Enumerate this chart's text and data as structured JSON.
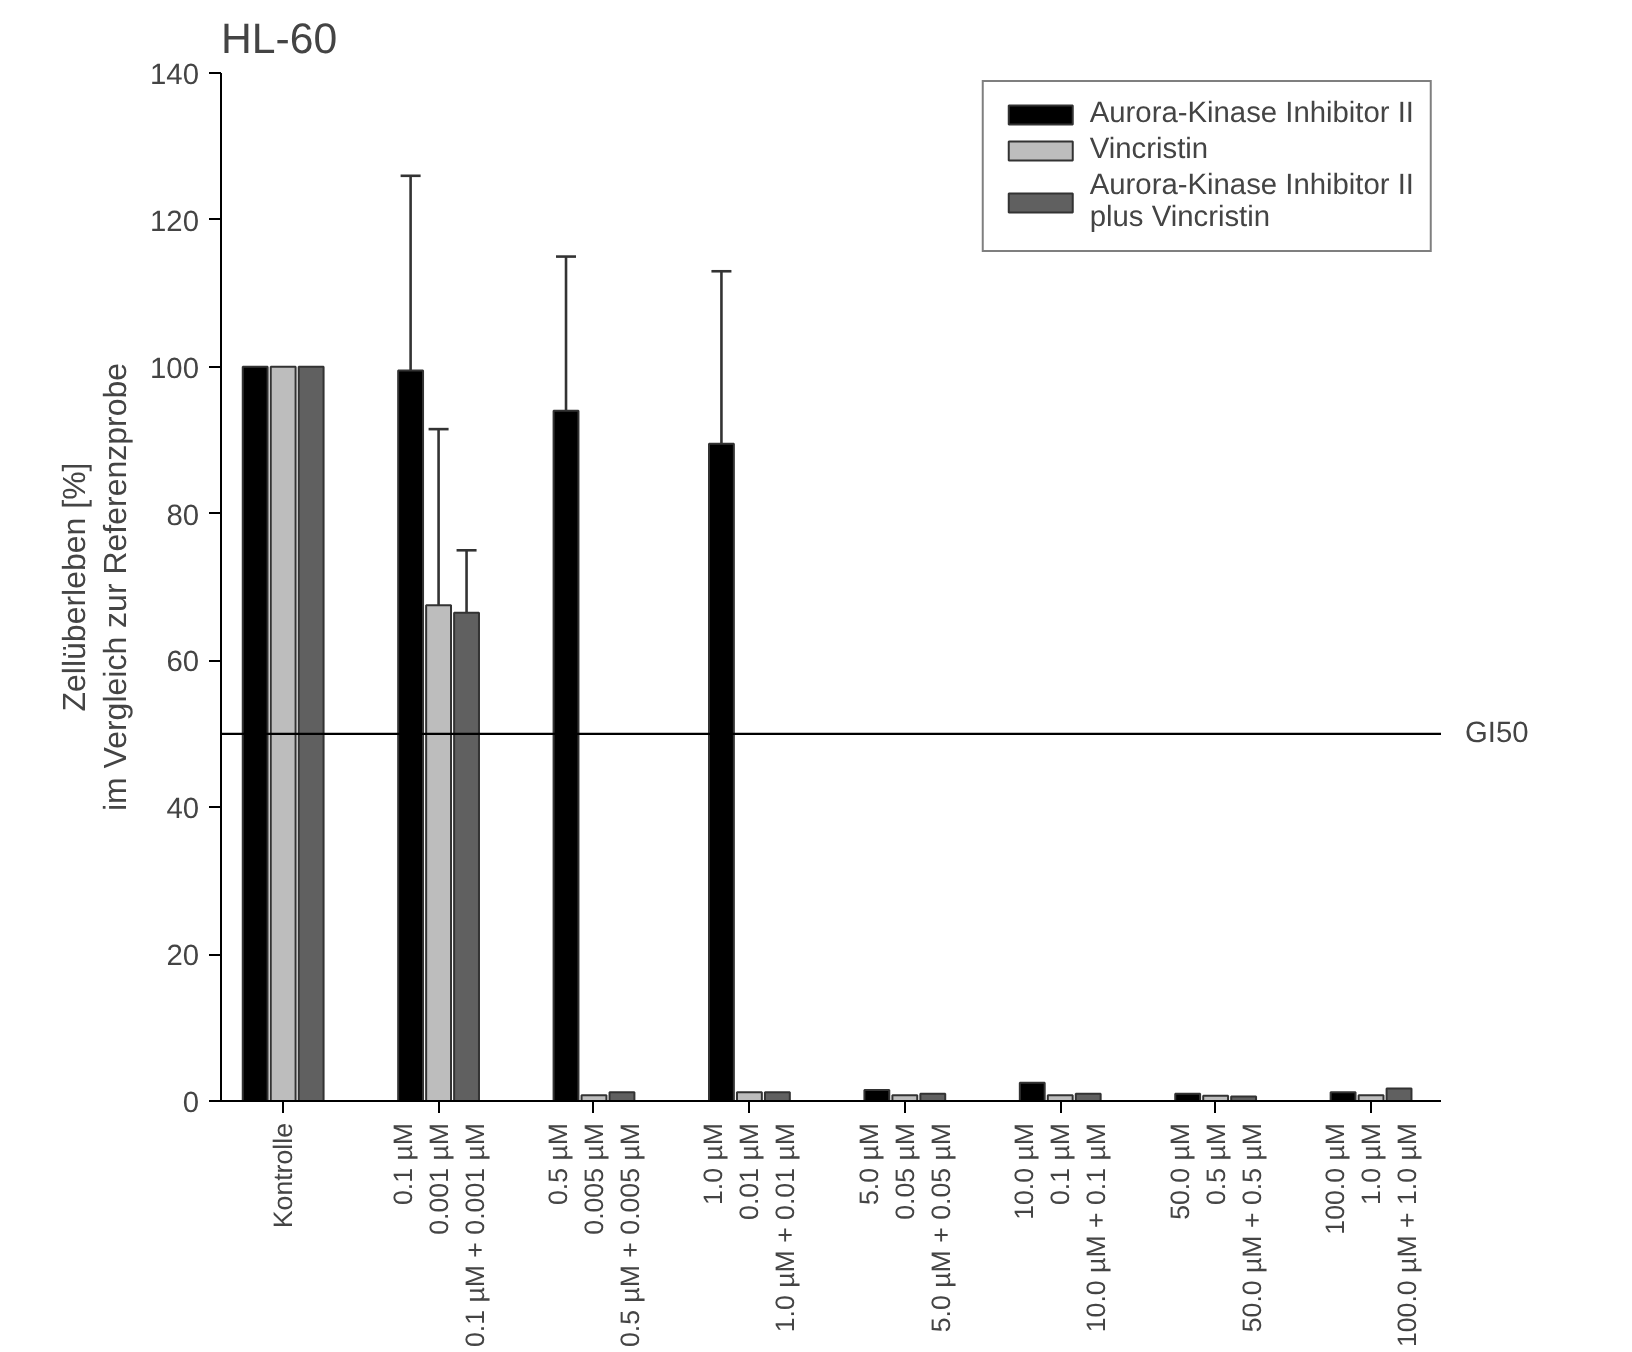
{
  "chart_data": {
    "type": "bar",
    "title": "HL-60",
    "ylabel": "Zellüberleben [%]\nim Vergleich zur Referenzprobe",
    "categories": [
      "Kontrolle",
      "0.1 µM\n0.001 µM\n0.1 µM + 0.001 µM",
      "0.5 µM\n0.005 µM\n0.5 µM + 0.005 µM",
      "1.0 µM\n0.01 µM\n1.0 µM + 0.01 µM",
      "5.0 µM\n0.05 µM\n5.0 µM + 0.05 µM",
      "10.0 µM\n0.1 µM\n10.0 µM + 0.1 µM",
      "50.0 µM\n0.5 µM\n50.0 µM + 0.5 µM",
      "100.0 µM\n1.0 µM\n100.0 µM + 1.0 µM"
    ],
    "series": [
      {
        "name": "Aurora-Kinase Inhibitor II",
        "color": "#000000",
        "values": [
          100,
          99.5,
          94,
          89.5,
          1.5,
          2.5,
          1.0,
          1.2
        ],
        "errors": [
          null,
          [
            99.5,
            126
          ],
          [
            94,
            115
          ],
          [
            89.5,
            113
          ],
          null,
          null,
          null,
          null
        ]
      },
      {
        "name": "Vincristin",
        "color": "#bdbdbd",
        "values": [
          100,
          67.5,
          0.8,
          1.2,
          0.8,
          0.8,
          0.7,
          0.8
        ],
        "errors": [
          null,
          [
            67.5,
            91.5
          ],
          null,
          null,
          null,
          null,
          null,
          null
        ]
      },
      {
        "name": "Aurora-Kinase Inhibitor II\nplus Vincristin",
        "color": "#606060",
        "values": [
          100,
          66.5,
          1.2,
          1.2,
          1.0,
          1.0,
          0.6,
          1.7
        ],
        "errors": [
          null,
          [
            66.5,
            75
          ],
          null,
          null,
          null,
          null,
          null,
          null
        ]
      }
    ],
    "ylim": [
      0,
      140
    ],
    "yticks": [
      0,
      20,
      40,
      60,
      80,
      100,
      120,
      140
    ],
    "ref_lines": [
      {
        "axis": "y",
        "value": 50,
        "label": "GI50"
      }
    ],
    "grid": false,
    "legend": "top right"
  }
}
